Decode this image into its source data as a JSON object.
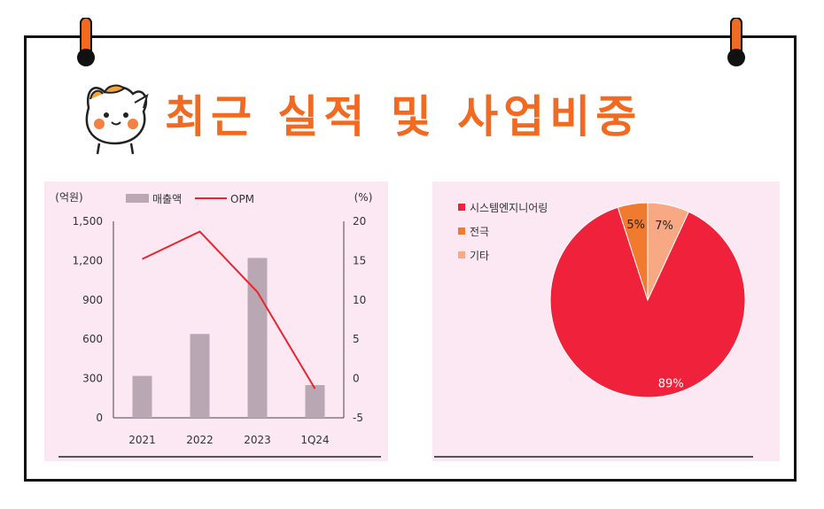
{
  "title": "최근 실적 및 사업비중",
  "colors": {
    "accent": "#f26a21",
    "bar": "#b9a7b3",
    "line": "#e8252e",
    "panel": "#fce8f3"
  },
  "chart_data": [
    {
      "type": "bar",
      "categories": [
        "2021",
        "2022",
        "2023",
        "1Q24"
      ],
      "y_unit_label": "(억원)",
      "y2_unit_label": "(%)",
      "ylim": [
        0,
        1500
      ],
      "y_ticks": [
        "1,500",
        "1,200",
        "900",
        "600",
        "300",
        "0"
      ],
      "y2lim": [
        -5,
        20
      ],
      "y2_ticks": [
        "20",
        "15",
        "10",
        "5",
        "0",
        "-5"
      ],
      "series": [
        {
          "name": "매출액",
          "type": "bar",
          "axis": "left",
          "values": [
            320,
            640,
            1220,
            250
          ]
        },
        {
          "name": "OPM",
          "type": "line",
          "axis": "right",
          "values": [
            15.2,
            18.7,
            11.0,
            -1.3
          ]
        }
      ],
      "legend": "top"
    },
    {
      "type": "pie",
      "slices": [
        {
          "name": "시스템엔지니어링",
          "value": 89,
          "label": "89%",
          "color": "#f0213a"
        },
        {
          "name": "전극",
          "value": 5,
          "label": "5%",
          "color": "#f07a2e"
        },
        {
          "name": "기타",
          "value": 7,
          "label": "7%",
          "color": "#f8a883"
        }
      ],
      "legend": "top-left"
    }
  ]
}
